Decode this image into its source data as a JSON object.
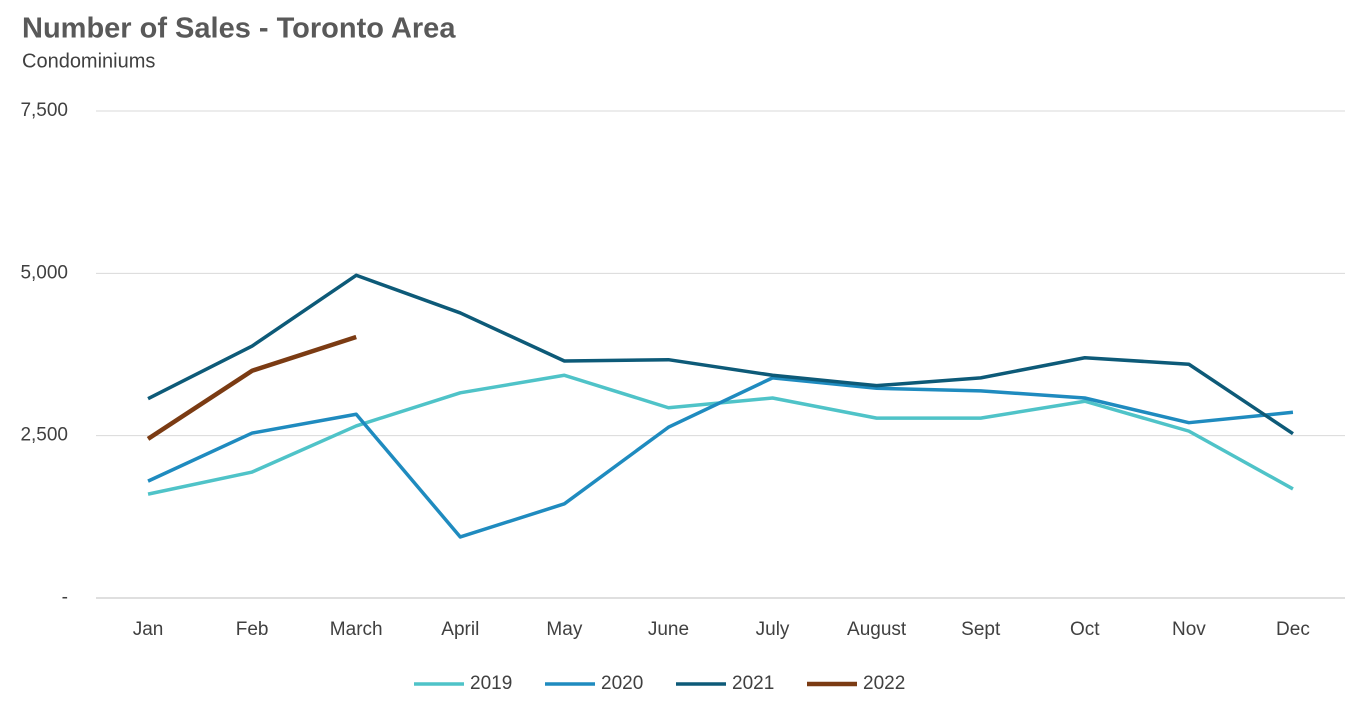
{
  "chart_data": {
    "type": "line",
    "title": "Number of Sales - Toronto Area",
    "subtitle": "Condominiums",
    "categories": [
      "Jan",
      "Feb",
      "March",
      "April",
      "May",
      "June",
      "July",
      "August",
      "Sept",
      "Oct",
      "Nov",
      "Dec"
    ],
    "series": [
      {
        "name": "2019",
        "color": "#4fc3c8",
        "values": [
          1600,
          1940,
          2650,
          3160,
          3430,
          2930,
          3080,
          2770,
          2770,
          3030,
          2570,
          1680
        ]
      },
      {
        "name": "2020",
        "color": "#1f8bbf",
        "values": [
          1800,
          2540,
          2830,
          940,
          1450,
          2630,
          3390,
          3230,
          3190,
          3080,
          2700,
          2860
        ]
      },
      {
        "name": "2021",
        "color": "#0d5a78",
        "values": [
          3070,
          3880,
          4970,
          4390,
          3650,
          3670,
          3430,
          3270,
          3390,
          3700,
          3600,
          2530
        ]
      },
      {
        "name": "2022",
        "color": "#7b3b13",
        "values": [
          2450,
          3500,
          4020,
          null,
          null,
          null,
          null,
          null,
          null,
          null,
          null,
          null
        ]
      }
    ],
    "ylim": [
      0,
      7500
    ],
    "yticks": [
      {
        "value": 0,
        "label": "-"
      },
      {
        "value": 2500,
        "label": "2,500"
      },
      {
        "value": 5000,
        "label": "5,000"
      },
      {
        "value": 7500,
        "label": "7,500"
      }
    ],
    "grid": true,
    "legend": "bottom"
  }
}
